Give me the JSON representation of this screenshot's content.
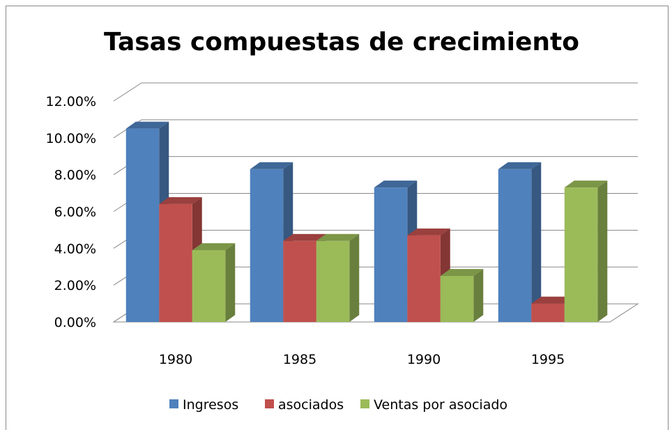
{
  "chart_data": {
    "type": "bar3d",
    "title": "Tasas compuestas de crecimiento",
    "categories": [
      "1980",
      "1985",
      "1990",
      "1995"
    ],
    "series": [
      {
        "name": "Ingresos",
        "color": "#4f81bd",
        "values": [
          10.5,
          8.3,
          7.3,
          8.3
        ]
      },
      {
        "name": "asociados",
        "color": "#c0504d",
        "values": [
          6.4,
          4.4,
          4.7,
          1.0
        ]
      },
      {
        "name": "Ventas por asociado",
        "color": "#9bbb59",
        "values": [
          3.9,
          4.4,
          2.5,
          7.3
        ]
      }
    ],
    "ylim": [
      0,
      12
    ],
    "yticks": [
      {
        "value": 0,
        "label": "0.00%"
      },
      {
        "value": 2,
        "label": "2.00%"
      },
      {
        "value": 4,
        "label": "4.00%"
      },
      {
        "value": 6,
        "label": "6.00%"
      },
      {
        "value": 8,
        "label": "8.00%"
      },
      {
        "value": 10,
        "label": "10.00%"
      },
      {
        "value": 12,
        "label": "12.00%"
      }
    ],
    "grid": true,
    "legend": "bottom"
  }
}
